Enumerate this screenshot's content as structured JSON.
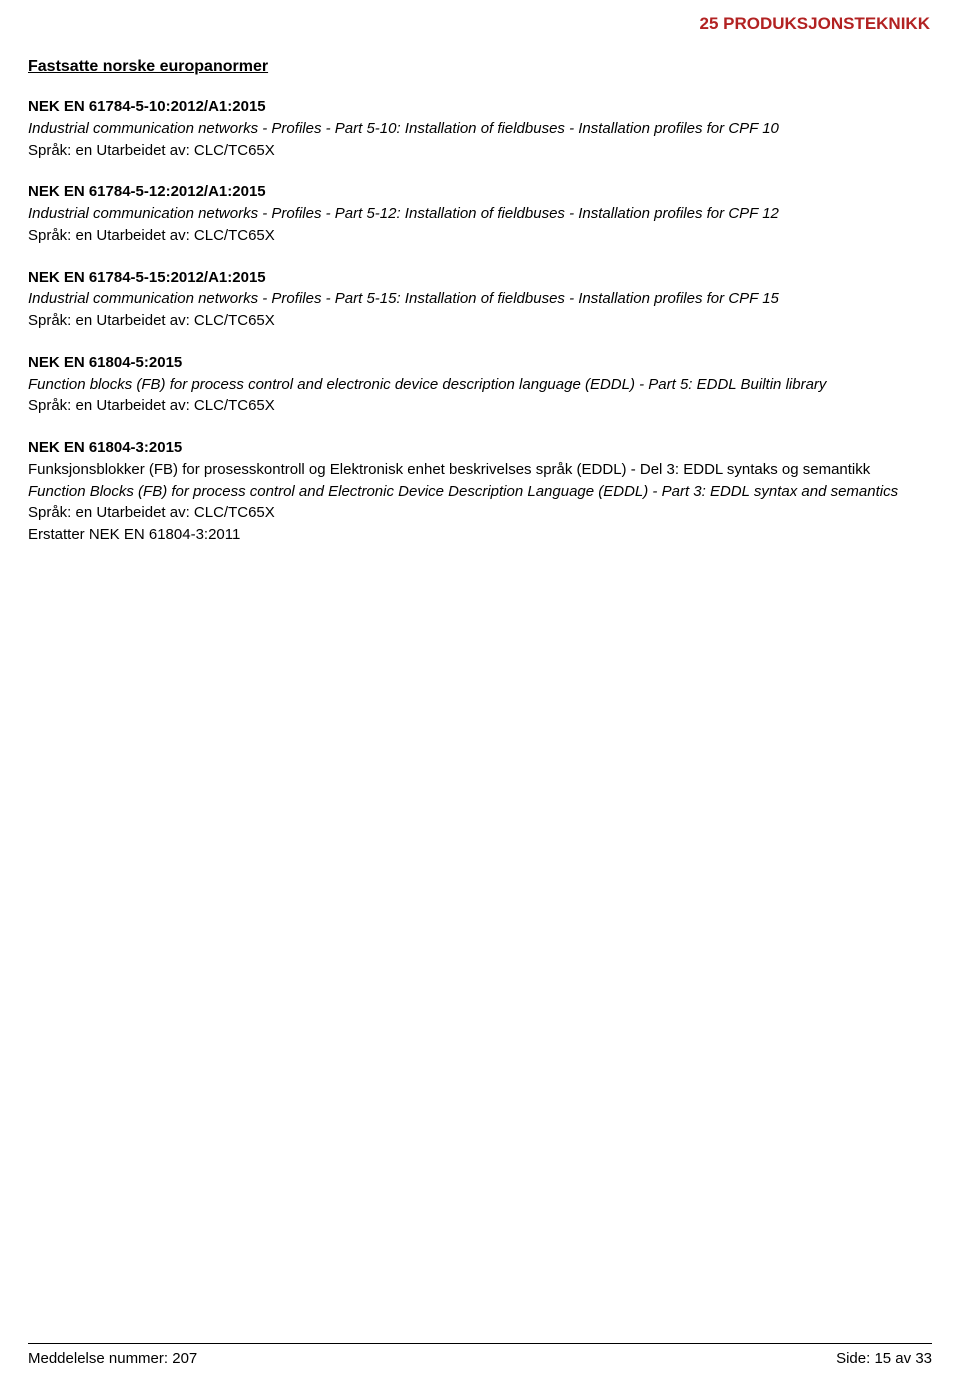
{
  "header": {
    "category": "25  PRODUKSJONSTEKNIKK",
    "section_heading": "Fastsatte norske europanormer"
  },
  "entries": [
    {
      "title": "NEK EN 61784-5-10:2012/A1:2015",
      "desc_en": "Industrial communication networks - Profiles - Part 5-10: Installation of fieldbuses - Installation profiles for CPF 10",
      "meta": "Språk: en   Utarbeidet av: CLC/TC65X"
    },
    {
      "title": "NEK EN 61784-5-12:2012/A1:2015",
      "desc_en": "Industrial communication networks - Profiles - Part 5-12: Installation of fieldbuses - Installation profiles for CPF 12",
      "meta": "Språk: en   Utarbeidet av: CLC/TC65X"
    },
    {
      "title": "NEK EN 61784-5-15:2012/A1:2015",
      "desc_en": "Industrial communication networks - Profiles - Part 5-15: Installation of fieldbuses - Installation profiles for CPF 15",
      "meta": "Språk: en   Utarbeidet av: CLC/TC65X"
    },
    {
      "title": "NEK EN 61804-5:2015",
      "desc_en": "Function blocks (FB) for process control and electronic device description language (EDDL) - Part 5: EDDL Builtin library",
      "meta": "Språk: en   Utarbeidet av: CLC/TC65X"
    },
    {
      "title": "NEK EN 61804-3:2015",
      "desc_no": "Funksjonsblokker (FB) for prosesskontroll og Elektronisk enhet beskrivelses språk (EDDL) - Del 3: EDDL syntaks og semantikk",
      "desc_en": "Function Blocks (FB) for process control and Electronic Device Description Language (EDDL) - Part 3: EDDL syntax and semantics",
      "meta": "Språk: en   Utarbeidet av: CLC/TC65X",
      "replaces": "Erstatter NEK EN 61804-3:2011"
    }
  ],
  "footer": {
    "left": "Meddelelse nummer: 207",
    "right": "Side: 15 av 33"
  },
  "colors": {
    "category_color": "#b22222",
    "text_color": "#000000",
    "background": "#ffffff"
  }
}
